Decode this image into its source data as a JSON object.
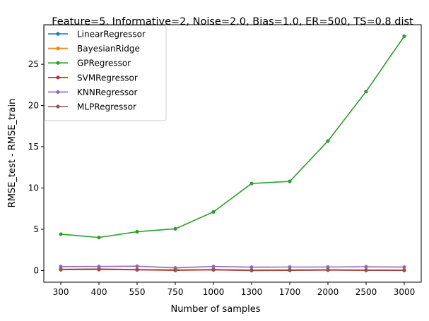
{
  "chart_data": {
    "type": "line",
    "title": "Feature=5, Informative=2, Noise=2.0, Bias=1.0, ER=500, TS=0.8 dist",
    "xlabel": "Number of samples",
    "ylabel": "RMSE_test - RMSE_train",
    "categories": [
      "300",
      "400",
      "550",
      "750",
      "1000",
      "1300",
      "1700",
      "2000",
      "2500",
      "3000"
    ],
    "ylim": [
      -1.42,
      29.8
    ],
    "yticks": [
      0,
      5,
      10,
      15,
      20,
      25
    ],
    "grid": false,
    "legend_position": "upper-left",
    "series": [
      {
        "name": "LinearRegressor",
        "color": "#1f77b4",
        "values": [
          0.12,
          0.15,
          0.1,
          0.05,
          0.1,
          0.02,
          0.05,
          0.06,
          0.04,
          0.03
        ]
      },
      {
        "name": "BayesianRidge",
        "color": "#ff7f0e",
        "values": [
          0.13,
          0.16,
          0.11,
          0.06,
          0.11,
          0.03,
          0.06,
          0.07,
          0.05,
          0.04
        ]
      },
      {
        "name": "GPRegressor",
        "color": "#2ca02c",
        "values": [
          4.4,
          4.0,
          4.7,
          5.05,
          7.1,
          10.55,
          10.8,
          15.7,
          21.7,
          28.4
        ]
      },
      {
        "name": "SVMRegressor",
        "color": "#d62728",
        "values": [
          0.1,
          0.12,
          0.08,
          0.02,
          0.08,
          0.0,
          0.02,
          0.05,
          0.02,
          0.01
        ]
      },
      {
        "name": "KNNRegressor",
        "color": "#9467bd",
        "values": [
          0.48,
          0.49,
          0.52,
          0.32,
          0.49,
          0.4,
          0.42,
          0.42,
          0.45,
          0.41
        ]
      },
      {
        "name": "MLPRegressor",
        "color": "#8c564b",
        "values": [
          0.15,
          0.18,
          0.12,
          0.06,
          0.12,
          0.04,
          0.06,
          0.08,
          0.05,
          0.04
        ]
      }
    ]
  }
}
